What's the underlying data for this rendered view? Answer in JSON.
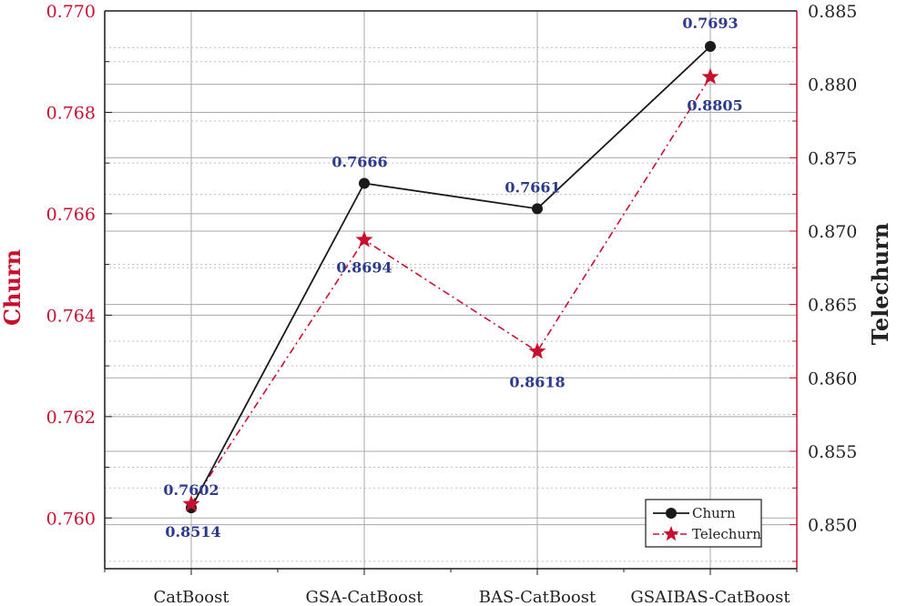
{
  "chart_data": {
    "type": "line",
    "categories": [
      "CatBoost",
      "GSA-CatBoost",
      "BAS-CatBoost",
      "GSAIBAS-CatBoost"
    ],
    "series": [
      {
        "name": "Churn",
        "axis": "left",
        "values": [
          0.7602,
          0.7666,
          0.7661,
          0.7693
        ],
        "labels": [
          "0.7602",
          "0.7666",
          "0.7661",
          "0.7693"
        ],
        "color": "#1a1a1a",
        "marker": "circle",
        "line_style": "solid"
      },
      {
        "name": "Telechurn",
        "axis": "right",
        "values": [
          0.8514,
          0.8694,
          0.8618,
          0.8805
        ],
        "labels": [
          "0.8514",
          "0.8694",
          "0.8618",
          "0.8805"
        ],
        "color": "#c8102e",
        "marker": "star",
        "line_style": "dash-dot"
      }
    ],
    "ylabel_left": "Churn",
    "ylabel_right": "Telechurn",
    "ylim_left": [
      0.759,
      0.77
    ],
    "ylim_right": [
      0.847,
      0.885
    ],
    "yticks_left": [
      "0.760",
      "0.762",
      "0.764",
      "0.766",
      "0.768",
      "0.770"
    ],
    "yticks_right": [
      "0.850",
      "0.855",
      "0.860",
      "0.865",
      "0.870",
      "0.875",
      "0.880",
      "0.885"
    ],
    "label_color_left": "#c8102e",
    "label_color_right": "#222222",
    "data_label_color": "#2b3a8c",
    "grid": true,
    "legend_position": "bottom-right"
  }
}
